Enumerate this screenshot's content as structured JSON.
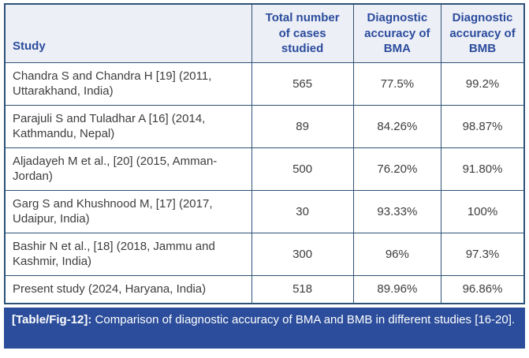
{
  "table": {
    "headers": {
      "study": "Study",
      "cases": "Total number of cases studied",
      "bma": "Diagnostic accuracy of BMA",
      "bmb": "Diagnostic accuracy of BMB"
    },
    "rows": [
      {
        "study": "Chandra S and Chandra H [19] (2011, Uttarakhand, India)",
        "cases": "565",
        "bma": "77.5%",
        "bmb": "99.2%"
      },
      {
        "study": "Parajuli S and Tuladhar A [16] (2014, Kathmandu, Nepal)",
        "cases": "89",
        "bma": "84.26%",
        "bmb": "98.87%"
      },
      {
        "study": "Aljadayeh M et al., [20] (2015, Amman-Jordan)",
        "cases": "500",
        "bma": "76.20%",
        "bmb": "91.80%"
      },
      {
        "study": "Garg S and Khushnood M, [17] (2017, Udaipur, India)",
        "cases": "30",
        "bma": "93.33%",
        "bmb": "100%"
      },
      {
        "study": "Bashir N et al., [18] (2018, Jammu and Kashmir, India)",
        "cases": "300",
        "bma": "96%",
        "bmb": "97.3%"
      },
      {
        "study": "Present study (2024, Haryana, India)",
        "cases": "518",
        "bma": "89.96%",
        "bmb": "96.86%"
      }
    ]
  },
  "caption": {
    "label": "[Table/Fig-12]:",
    "text": " Comparison of diagnostic accuracy of BMA and BMB in different studies [16-20]."
  },
  "colors": {
    "border": "#2d5277",
    "header_bg": "#edeff7",
    "header_text": "#2b4c9c",
    "body_text": "#3d3d3d",
    "caption_bg": "#2b4d9b",
    "caption_text": "#ffffff"
  }
}
